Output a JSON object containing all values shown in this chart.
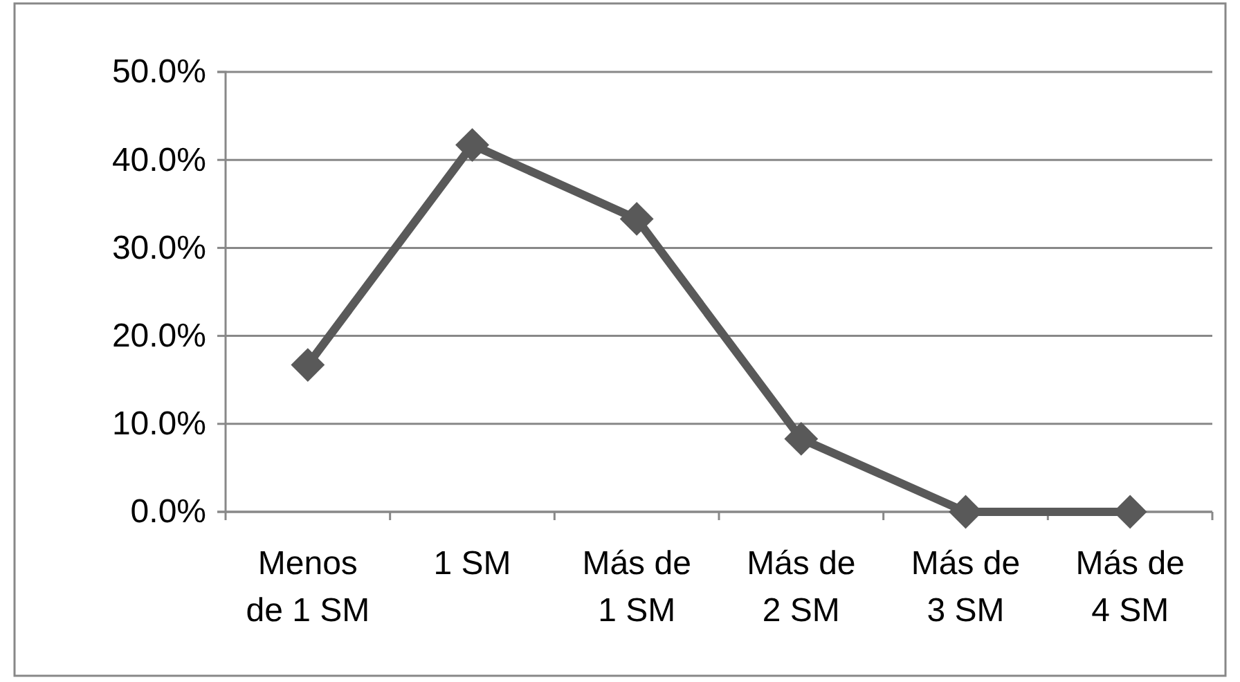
{
  "chart_data": {
    "type": "line",
    "categories": [
      "Menos de 1 SM",
      "1 SM",
      "Más de 1 SM",
      "Más de 2 SM",
      "Más de 3 SM",
      "Más de 4 SM"
    ],
    "series": [
      {
        "color": "#595959",
        "values": [
          16.7,
          41.7,
          33.3,
          8.3,
          0,
          0
        ]
      }
    ],
    "ylim": [
      0,
      50
    ],
    "yticks": [
      {
        "value": 0,
        "label": "0.0%"
      },
      {
        "value": 10,
        "label": "10.0%"
      },
      {
        "value": 20,
        "label": "20.0%"
      },
      {
        "value": 30,
        "label": "30.0%"
      },
      {
        "value": 40,
        "label": "40.0%"
      },
      {
        "value": 50,
        "label": "50.0%"
      }
    ],
    "grid": "y",
    "marker": "diamond",
    "line_style": "solid"
  }
}
